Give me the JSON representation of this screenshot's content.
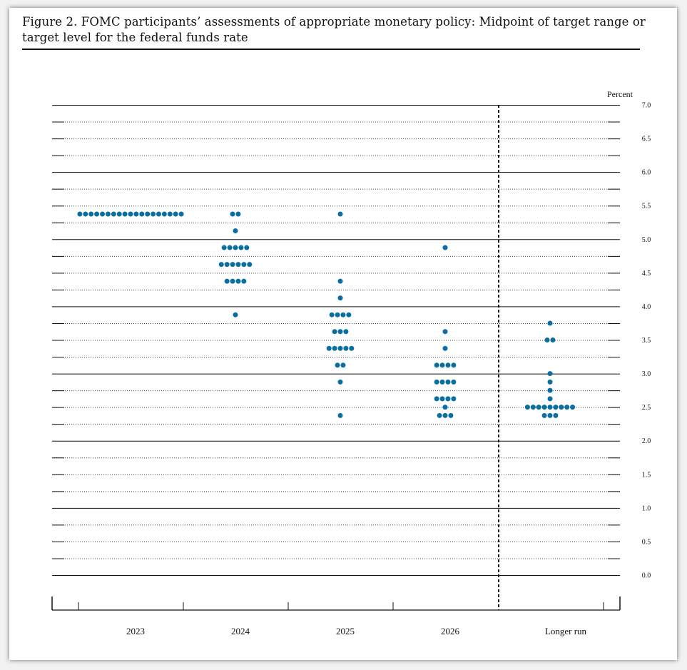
{
  "figure": {
    "title": "Figure 2.  FOMC participants’ assessments of appropriate monetary policy:  Midpoint of target range or target level for the federal funds rate"
  },
  "colors": {
    "dot": "#0a6ea0",
    "line": "#111111",
    "grid": "#444444"
  },
  "chart_data": {
    "type": "scatter",
    "subtype": "dot-plot",
    "title": "FOMC participants’ assessments of appropriate monetary policy: Midpoint of target range or target level for the federal funds rate",
    "ylabel": "Percent",
    "ylim": [
      0,
      7
    ],
    "yticks": [
      "7.0",
      "6.5",
      "6.0",
      "5.5",
      "5.0",
      "4.5",
      "4.0",
      "3.5",
      "3.0",
      "2.5",
      "2.0",
      "1.5",
      "1.0",
      "0.5",
      "0.0"
    ],
    "ytick_values": [
      7.0,
      6.5,
      6.0,
      5.5,
      5.0,
      4.5,
      4.0,
      3.5,
      3.0,
      2.5,
      2.0,
      1.5,
      1.0,
      0.5,
      0.0
    ],
    "categories": [
      "2023",
      "2024",
      "2025",
      "2026",
      "Longer run"
    ],
    "grid": "dotted at 0.25 intervals, solid at whole numbers",
    "separator": "dashed vertical line before Longer run",
    "dots": [
      {
        "category": "2023",
        "rates": [
          {
            "value": 5.375,
            "count": 19
          }
        ]
      },
      {
        "category": "2024",
        "rates": [
          {
            "value": 5.375,
            "count": 2
          },
          {
            "value": 5.125,
            "count": 1
          },
          {
            "value": 4.875,
            "count": 5
          },
          {
            "value": 4.625,
            "count": 6
          },
          {
            "value": 4.375,
            "count": 4
          },
          {
            "value": 3.875,
            "count": 1
          }
        ]
      },
      {
        "category": "2025",
        "rates": [
          {
            "value": 5.375,
            "count": 1
          },
          {
            "value": 4.375,
            "count": 1
          },
          {
            "value": 4.125,
            "count": 1
          },
          {
            "value": 3.875,
            "count": 4
          },
          {
            "value": 3.625,
            "count": 3
          },
          {
            "value": 3.375,
            "count": 5
          },
          {
            "value": 3.125,
            "count": 2
          },
          {
            "value": 2.875,
            "count": 1
          },
          {
            "value": 2.375,
            "count": 1
          }
        ]
      },
      {
        "category": "2026",
        "rates": [
          {
            "value": 4.875,
            "count": 1
          },
          {
            "value": 3.625,
            "count": 1
          },
          {
            "value": 3.375,
            "count": 1
          },
          {
            "value": 3.125,
            "count": 4
          },
          {
            "value": 2.875,
            "count": 4
          },
          {
            "value": 2.625,
            "count": 4
          },
          {
            "value": 2.5,
            "count": 1
          },
          {
            "value": 2.375,
            "count": 3
          }
        ]
      },
      {
        "category": "Longer run",
        "rates": [
          {
            "value": 3.75,
            "count": 1
          },
          {
            "value": 3.5,
            "count": 2
          },
          {
            "value": 3.0,
            "count": 1
          },
          {
            "value": 2.875,
            "count": 1
          },
          {
            "value": 2.75,
            "count": 1
          },
          {
            "value": 2.625,
            "count": 1
          },
          {
            "value": 2.5,
            "count": 9
          },
          {
            "value": 2.375,
            "count": 3
          }
        ]
      }
    ]
  }
}
